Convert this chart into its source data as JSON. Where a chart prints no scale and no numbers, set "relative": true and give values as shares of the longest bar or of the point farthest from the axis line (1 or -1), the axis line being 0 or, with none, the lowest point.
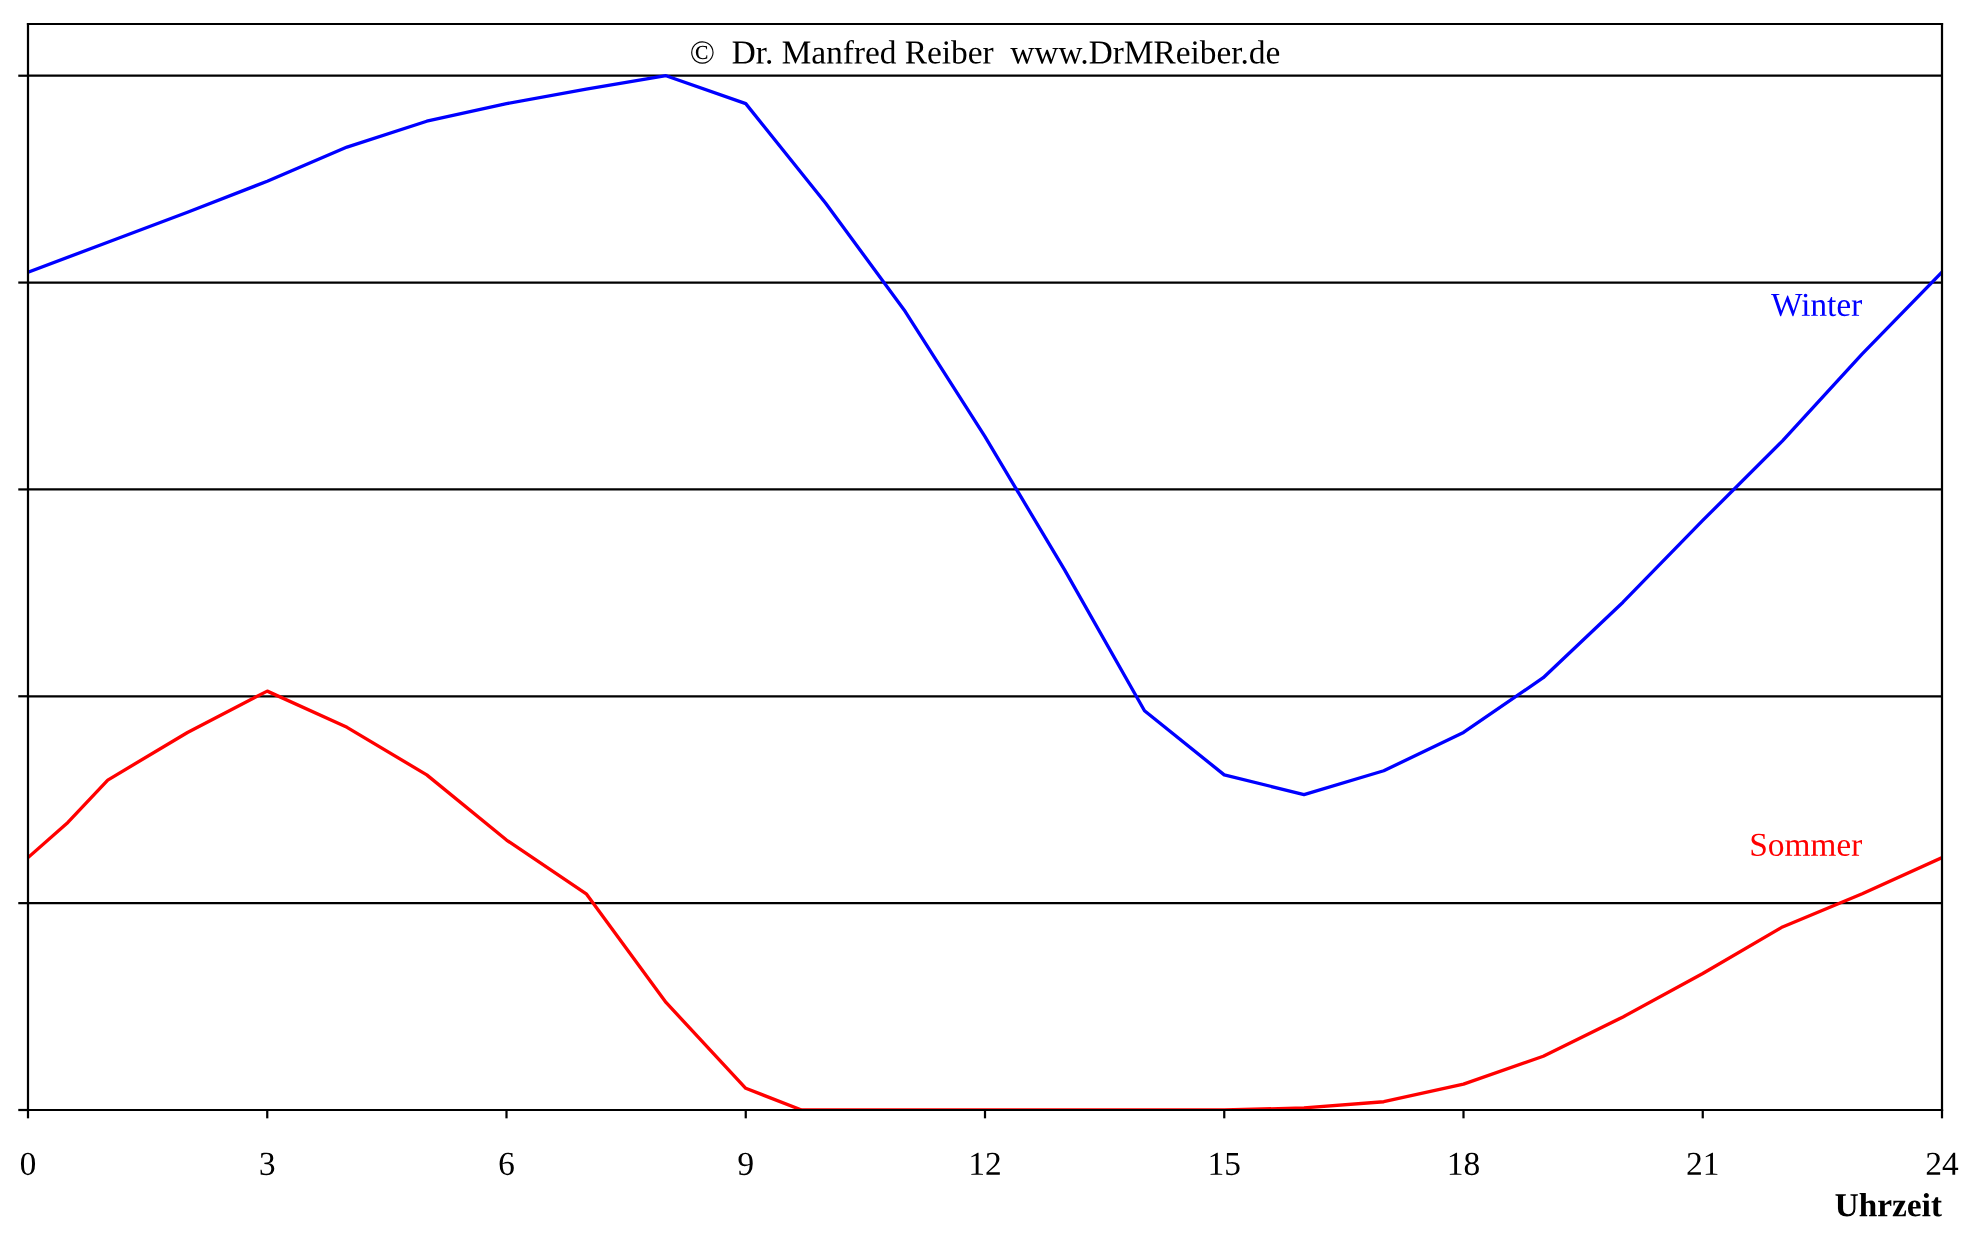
{
  "chart_data": {
    "type": "line",
    "relative": true,
    "xlabel": "Uhrzeit",
    "annotations": [
      "©  Dr. Manfred Reiber  www.DrMReiber.de"
    ],
    "xlim": [
      0,
      24
    ],
    "xticks": [
      0,
      3,
      6,
      9,
      12,
      15,
      18,
      21,
      24
    ],
    "grid": "y",
    "legend": false,
    "marker": "none",
    "line_style": "solid",
    "series": [
      {
        "name": "Winter",
        "color": "#0000ff",
        "x": [
          0,
          1,
          2,
          3,
          4,
          5,
          6,
          7,
          8,
          9,
          10,
          11,
          12,
          13,
          14,
          15,
          16,
          17,
          18,
          19,
          20,
          21,
          22,
          23,
          24
        ],
        "values": [
          0.81,
          0.839,
          0.868,
          0.898,
          0.931,
          0.956,
          0.973,
          0.987,
          1,
          0.973,
          0.877,
          0.772,
          0.651,
          0.522,
          0.386,
          0.324,
          0.305,
          0.328,
          0.365,
          0.418,
          0.491,
          0.57,
          0.647,
          0.731,
          0.81
        ]
      },
      {
        "name": "Sommer",
        "color": "#ff0000",
        "x": [
          0,
          0.5,
          1,
          2,
          3,
          4,
          5,
          6,
          7,
          8,
          9,
          9.7,
          12,
          15,
          16,
          17,
          18,
          19,
          20,
          21,
          22,
          23,
          24
        ],
        "values": [
          0.244,
          0.278,
          0.319,
          0.365,
          0.405,
          0.37,
          0.324,
          0.261,
          0.209,
          0.104,
          0.021,
          0,
          0,
          0,
          0.002,
          0.008,
          0.025,
          0.052,
          0.09,
          0.132,
          0.177,
          0.209,
          0.244
        ]
      }
    ]
  }
}
